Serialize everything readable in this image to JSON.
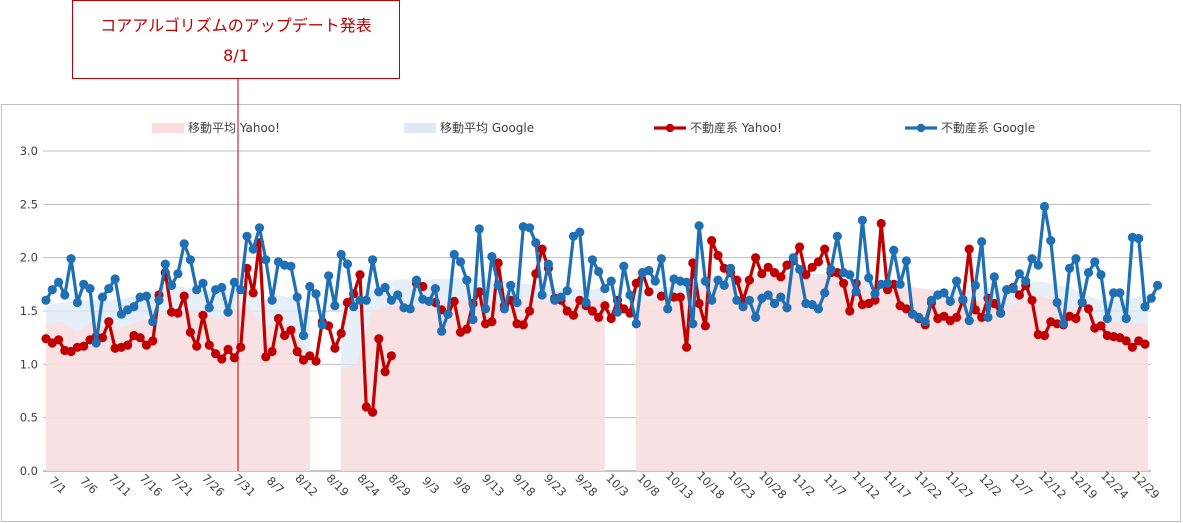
{
  "annotation": {
    "title": "コアアルゴリズムのアップデート発表",
    "date": "8/1",
    "color": "#c00000"
  },
  "chart_data": {
    "type": "line",
    "ylim": [
      0,
      3
    ],
    "yticks": [
      "0.0",
      "0.5",
      "1.0",
      "1.5",
      "2.0",
      "2.5",
      "3.0"
    ],
    "xtick_labels": [
      "7/1",
      "7/6",
      "7/11",
      "7/16",
      "7/21",
      "7/26",
      "7/31",
      "8/7",
      "8/12",
      "8/19",
      "8/24",
      "8/29",
      "9/3",
      "9/8",
      "9/13",
      "9/18",
      "9/23",
      "9/28",
      "10/3",
      "10/8",
      "10/13",
      "10/18",
      "10/23",
      "10/28",
      "11/2",
      "11/7",
      "11/12",
      "11/17",
      "11/22",
      "11/27",
      "12/2",
      "12/7",
      "12/12",
      "12/19",
      "12/24",
      "12/29"
    ],
    "grid": true,
    "legend_position": "top",
    "legend": [
      {
        "name": "移動平均 Yahoo!",
        "kind": "area",
        "color": "#fcdcdc"
      },
      {
        "name": "移動平均 Google",
        "kind": "area",
        "color": "#dde8f6"
      },
      {
        "name": "不動産系 Yahoo!",
        "kind": "line",
        "color": "#c00000"
      },
      {
        "name": "不動産系 Google",
        "kind": "line",
        "color": "#1f6fb4"
      }
    ],
    "series": [
      {
        "name": "不動産系 Yahoo!",
        "color": "#c00000",
        "values": [
          1.24,
          1.2,
          1.23,
          1.13,
          1.12,
          1.16,
          1.17,
          1.23,
          1.26,
          1.25,
          1.4,
          1.15,
          1.16,
          1.18,
          1.27,
          1.25,
          1.18,
          1.22,
          1.65,
          1.86,
          1.49,
          1.48,
          1.64,
          1.3,
          1.17,
          1.46,
          1.18,
          1.1,
          1.05,
          1.14,
          1.06,
          1.16,
          1.9,
          1.67,
          2.14,
          1.07,
          1.12,
          1.43,
          1.27,
          1.32,
          1.12,
          1.04,
          1.08,
          1.03,
          1.4,
          1.36,
          1.15,
          1.29,
          1.58,
          1.66,
          1.84,
          0.6,
          0.55,
          1.24,
          0.93,
          1.08,
          null,
          null,
          null,
          1.76,
          1.73,
          null,
          1.58,
          1.51,
          1.47,
          1.59,
          1.3,
          1.33,
          1.57,
          1.68,
          1.38,
          1.4,
          1.95,
          1.55,
          1.6,
          1.38,
          1.37,
          1.5,
          1.85,
          2.08,
          1.9,
          1.62,
          1.6,
          1.5,
          1.46,
          1.6,
          1.55,
          1.5,
          1.44,
          1.55,
          1.43,
          1.6,
          1.52,
          1.48,
          1.76,
          1.86,
          1.68,
          null,
          1.64,
          null,
          1.63,
          1.63,
          1.16,
          1.95,
          1.57,
          1.36,
          2.16,
          2.02,
          1.9,
          1.86,
          1.79,
          1.6,
          1.79,
          2.0,
          1.85,
          1.91,
          1.86,
          1.82,
          1.93,
          1.97,
          2.1,
          1.84,
          1.91,
          1.96,
          2.08,
          1.86,
          1.86,
          1.76,
          1.5,
          1.76,
          1.56,
          1.57,
          1.6,
          2.32,
          1.7,
          1.75,
          1.55,
          1.52,
          1.47,
          1.43,
          1.37,
          1.58,
          1.43,
          1.45,
          1.41,
          1.44,
          1.6,
          2.08,
          1.51,
          1.44,
          1.62,
          1.57,
          1.48,
          1.7,
          1.72,
          1.65,
          1.74,
          1.6,
          1.28,
          1.27,
          1.4,
          1.38,
          1.37,
          1.45,
          1.43,
          1.58,
          1.52,
          1.34,
          1.36,
          1.27,
          1.26,
          1.25,
          1.22,
          1.16,
          1.22,
          1.19
        ]
      },
      {
        "name": "不動産系 Google",
        "color": "#1f6fb4",
        "values": [
          1.6,
          1.7,
          1.77,
          1.65,
          1.99,
          1.58,
          1.75,
          1.71,
          1.2,
          1.63,
          1.71,
          1.8,
          1.47,
          1.51,
          1.54,
          1.63,
          1.64,
          1.4,
          1.6,
          1.94,
          1.74,
          1.85,
          2.13,
          1.98,
          1.7,
          1.76,
          1.53,
          1.7,
          1.72,
          1.49,
          1.77,
          1.7,
          2.2,
          2.08,
          2.28,
          1.98,
          1.6,
          1.96,
          1.93,
          1.92,
          1.63,
          1.27,
          1.73,
          1.66,
          1.37,
          1.83,
          1.55,
          2.03,
          1.94,
          1.54,
          1.6,
          1.6,
          1.98,
          1.68,
          1.72,
          1.6,
          1.65,
          1.53,
          1.52,
          1.79,
          1.61,
          1.59,
          1.71,
          1.31,
          1.47,
          2.03,
          1.96,
          1.79,
          1.42,
          2.27,
          1.52,
          2.01,
          1.74,
          1.52,
          1.74,
          1.58,
          2.29,
          2.28,
          2.14,
          1.65,
          1.94,
          1.6,
          1.63,
          1.69,
          2.2,
          2.24,
          1.58,
          1.98,
          1.87,
          1.71,
          1.78,
          1.49,
          1.92,
          1.65,
          1.38,
          1.86,
          1.88,
          1.78,
          1.99,
          1.52,
          1.8,
          1.78,
          1.77,
          1.38,
          2.3,
          1.78,
          1.6,
          1.79,
          1.74,
          1.9,
          1.6,
          1.54,
          1.6,
          1.44,
          1.62,
          1.65,
          1.57,
          1.63,
          1.53,
          2.0,
          1.89,
          1.57,
          1.56,
          1.52,
          1.67,
          1.89,
          2.2,
          1.86,
          1.84,
          1.68,
          2.35,
          1.81,
          1.66,
          1.75,
          1.76,
          2.07,
          1.75,
          1.97,
          1.47,
          1.44,
          1.4,
          1.6,
          1.65,
          1.67,
          1.59,
          1.78,
          1.61,
          1.41,
          1.74,
          2.15,
          1.44,
          1.82,
          1.48,
          1.7,
          1.71,
          1.85,
          1.78,
          1.99,
          1.93,
          2.48,
          2.16,
          1.58,
          1.38,
          1.9,
          1.99,
          1.58,
          1.86,
          1.96,
          1.84,
          1.43,
          1.67,
          1.67,
          1.43,
          2.19,
          2.18,
          1.54,
          1.62,
          1.74
        ]
      }
    ],
    "moving_average": [
      {
        "name": "移動平均 Yahoo!",
        "color": "#fcdcdc",
        "values": [
          1.38,
          1.4,
          1.3,
          1.4,
          1.35,
          1.35,
          1.4,
          1.45,
          1.5,
          1.48,
          1.5,
          1.42,
          1.5,
          1.55,
          1.35,
          1.4,
          1.35,
          1.0,
          null,
          0.95,
          1.0,
          1.5,
          1.55,
          1.6,
          1.55,
          1.6,
          1.58,
          1.6,
          1.58,
          1.62,
          1.58,
          1.6,
          1.6,
          1.58,
          1.6,
          1.6,
          1.62,
          null,
          1.6,
          1.6,
          1.62,
          1.65,
          1.7,
          1.75,
          1.75,
          1.75,
          1.8,
          1.85,
          1.85,
          1.8,
          1.82,
          1.8,
          1.78,
          1.7,
          1.75,
          1.72,
          1.72,
          1.7,
          1.65,
          1.6,
          1.6,
          1.55,
          1.55,
          1.6,
          1.65,
          1.6,
          1.55,
          1.45,
          1.4,
          1.4,
          1.38,
          1.38
        ]
      },
      {
        "name": "移動平均 Google",
        "color": "#dde8f6",
        "values": [
          1.55,
          1.58,
          1.6,
          1.6,
          1.6,
          1.62,
          1.65,
          1.7,
          1.75,
          1.72,
          1.7,
          1.68,
          1.72,
          1.7,
          1.6,
          1.65,
          1.62,
          1.45,
          null,
          1.6,
          1.6,
          1.7,
          1.78,
          1.8,
          1.78,
          1.8,
          1.8,
          1.82,
          1.8,
          1.78,
          1.78,
          1.75,
          1.75,
          1.72,
          1.7,
          1.7,
          1.72,
          null,
          1.7,
          1.72,
          1.72,
          1.75,
          1.78,
          1.8,
          1.8,
          1.82,
          1.85,
          1.88,
          1.88,
          1.85,
          1.85,
          1.82,
          1.8,
          1.78,
          1.78,
          1.75,
          1.72,
          1.7,
          1.7,
          1.7,
          1.72,
          1.72,
          1.72,
          1.75,
          1.78,
          1.75,
          1.72,
          1.65,
          1.6,
          1.6,
          1.62,
          1.65
        ]
      }
    ]
  }
}
